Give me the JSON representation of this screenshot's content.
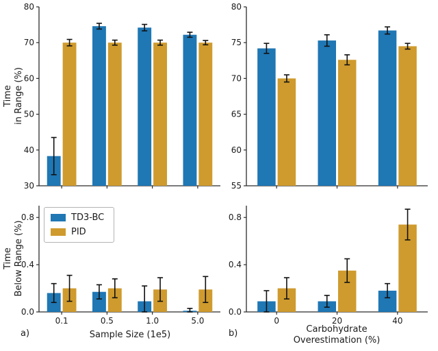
{
  "figure": {
    "background": "#ffffff",
    "colors": {
      "td3bc": "#1f77b4",
      "pid": "#cf9b2e",
      "error_bar": "#111111",
      "spine": "#2b2b2b"
    },
    "panel_labels": {
      "a": "a)",
      "b": "b)"
    },
    "legend": {
      "items": [
        {
          "label": "TD3-BC",
          "color_key": "td3bc"
        },
        {
          "label": "PID",
          "color_key": "pid"
        }
      ]
    }
  },
  "chart_data": [
    {
      "id": "time-in-range-vs-sample-size",
      "type": "bar",
      "ylabel_lines": [
        "Time",
        "in Range (%)"
      ],
      "categories": [
        "0.1",
        "0.5",
        "1.0",
        "5.0"
      ],
      "show_x_tick_labels": false,
      "ylim": [
        30,
        80
      ],
      "yticks": [
        30,
        40,
        50,
        60,
        70,
        80
      ],
      "ytick_labels": [
        "30",
        "40",
        "50",
        "60",
        "70",
        "80"
      ],
      "series": [
        {
          "name": "TD3-BC",
          "values": [
            38.3,
            74.6,
            74.2,
            72.2
          ],
          "errors": [
            5.2,
            0.8,
            0.9,
            0.7
          ]
        },
        {
          "name": "PID",
          "values": [
            70.0,
            70.0,
            70.0,
            70.0
          ],
          "errors": [
            0.9,
            0.7,
            0.7,
            0.6
          ]
        }
      ]
    },
    {
      "id": "time-in-range-vs-carb-overestimation",
      "type": "bar",
      "categories": [
        "0",
        "20",
        "40"
      ],
      "show_x_tick_labels": false,
      "ylim": [
        55,
        80
      ],
      "yticks": [
        55,
        60,
        65,
        70,
        75,
        80
      ],
      "ytick_labels": [
        "55",
        "60",
        "65",
        "70",
        "75",
        "80"
      ],
      "series": [
        {
          "name": "TD3-BC",
          "values": [
            74.2,
            75.3,
            76.7
          ],
          "errors": [
            0.7,
            0.8,
            0.5
          ]
        },
        {
          "name": "PID",
          "values": [
            70.0,
            72.6,
            74.5
          ],
          "errors": [
            0.5,
            0.7,
            0.4
          ]
        }
      ]
    },
    {
      "id": "time-below-range-vs-sample-size",
      "type": "bar",
      "ylabel_lines": [
        "Time",
        "Below Range (%)"
      ],
      "xlabel_lines": [
        "Sample Size (1e5)"
      ],
      "categories": [
        "0.1",
        "0.5",
        "1.0",
        "5.0"
      ],
      "show_x_tick_labels": true,
      "ylim": [
        0,
        0.9
      ],
      "yticks": [
        0,
        0.4,
        0.8
      ],
      "ytick_labels": [
        "0.0",
        "0.4",
        "0.8"
      ],
      "series": [
        {
          "name": "TD3-BC",
          "values": [
            0.16,
            0.17,
            0.09,
            0.01
          ],
          "errors": [
            0.08,
            0.06,
            0.13,
            0.02
          ]
        },
        {
          "name": "PID",
          "values": [
            0.2,
            0.2,
            0.19,
            0.19
          ],
          "errors": [
            0.11,
            0.08,
            0.1,
            0.11
          ]
        }
      ]
    },
    {
      "id": "time-below-range-vs-carb-overestimation",
      "type": "bar",
      "xlabel_lines": [
        "Carbohydrate",
        "Overestimation (%)"
      ],
      "categories": [
        "0",
        "20",
        "40"
      ],
      "show_x_tick_labels": true,
      "ylim": [
        0,
        0.9
      ],
      "yticks": [
        0,
        0.4,
        0.8
      ],
      "ytick_labels": [
        "0.0",
        "0.4",
        "0.8"
      ],
      "series": [
        {
          "name": "TD3-BC",
          "values": [
            0.09,
            0.09,
            0.18
          ],
          "errors": [
            0.09,
            0.05,
            0.06
          ]
        },
        {
          "name": "PID",
          "values": [
            0.2,
            0.35,
            0.74
          ],
          "errors": [
            0.09,
            0.1,
            0.13
          ]
        }
      ]
    }
  ]
}
